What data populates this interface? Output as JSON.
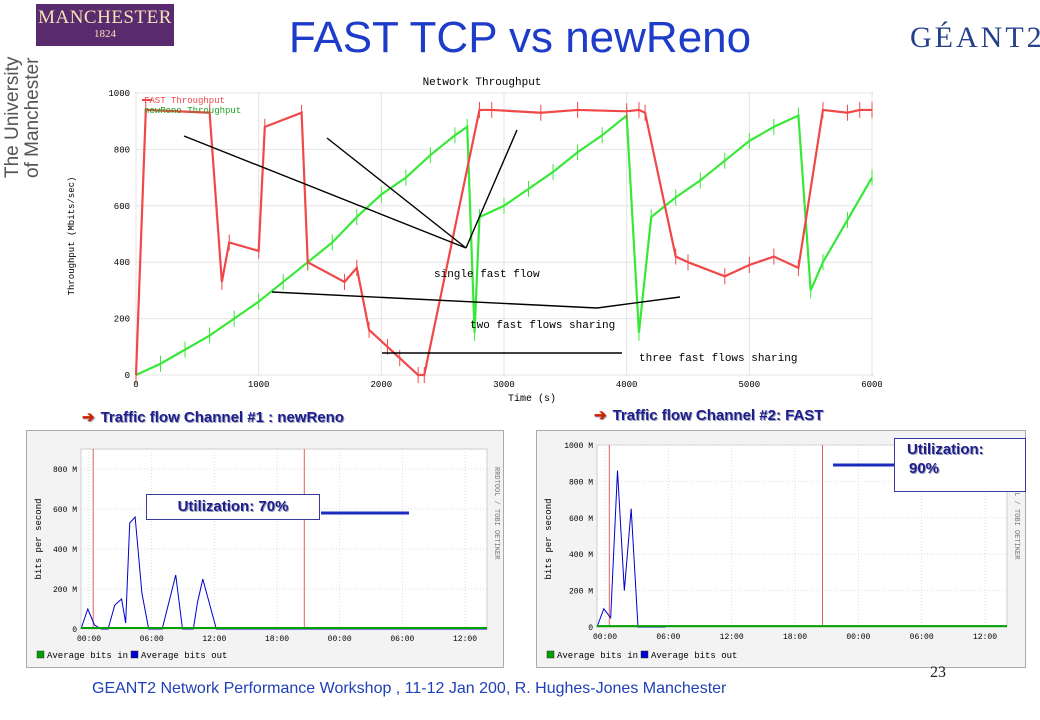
{
  "slide": {
    "title": "FAST TCP vs newReno",
    "footer": "GEANT2 Network Performance Workshop , 11-12 Jan 200,  R. Hughes-Jones  Manchester",
    "page_number": "23"
  },
  "logos": {
    "manchester_name": "MANCHESTER",
    "manchester_year": "1824",
    "university_line1": "The University",
    "university_line2": "of Manchester",
    "geant": "GÉANT2"
  },
  "channels": {
    "channel1_title": "Traffic flow Channel #1 : newReno",
    "channel2_title": "Traffic flow Channel #2: FAST",
    "channel1_util": "Utilization: 70%",
    "channel2_util_label": "Utilization:",
    "channel2_util_value": "90%"
  },
  "colors": {
    "fast": "#f04848",
    "newreno": "#38e838",
    "bits_in": "#00a000",
    "bits_out": "#0000d0",
    "title_blue": "#1c3cc9"
  },
  "chart_data": [
    {
      "type": "line",
      "title": "Network Throughput",
      "xlabel": "Time (s)",
      "ylabel": "Throughput (Mbits/sec)",
      "xlim": [
        0,
        6000
      ],
      "ylim": [
        0,
        1000
      ],
      "xticks": [
        0,
        1000,
        2000,
        3000,
        4000,
        5000,
        6000
      ],
      "yticks": [
        0,
        200,
        400,
        600,
        800,
        1000
      ],
      "legend": [
        "FAST Throughput",
        "newReno Throughput"
      ],
      "series": [
        {
          "name": "FAST Throughput",
          "x": [
            0,
            80,
            600,
            700,
            760,
            1000,
            1050,
            1350,
            1400,
            1700,
            1800,
            1900,
            2050,
            2150,
            2300,
            2350,
            2800,
            2900,
            3300,
            3600,
            4000,
            4100,
            4150,
            4400,
            4500,
            4800,
            5000,
            5200,
            5400,
            5600,
            5800,
            5900,
            6000
          ],
          "y": [
            0,
            940,
            930,
            330,
            470,
            440,
            880,
            930,
            400,
            330,
            380,
            160,
            100,
            60,
            0,
            0,
            940,
            940,
            930,
            940,
            935,
            940,
            930,
            420,
            400,
            350,
            390,
            420,
            380,
            940,
            930,
            940,
            940
          ]
        },
        {
          "name": "newReno Throughput",
          "x": [
            0,
            200,
            400,
            600,
            800,
            1000,
            1200,
            1400,
            1600,
            1800,
            2000,
            2200,
            2400,
            2600,
            2700,
            2760,
            2800,
            3000,
            3200,
            3400,
            3600,
            3800,
            4000,
            4100,
            4200,
            4400,
            4600,
            4800,
            5000,
            5200,
            5400,
            5500,
            5600,
            5800,
            6000
          ],
          "y": [
            0,
            40,
            90,
            140,
            200,
            260,
            330,
            400,
            470,
            560,
            640,
            700,
            780,
            850,
            880,
            150,
            560,
            600,
            660,
            720,
            790,
            850,
            920,
            150,
            560,
            630,
            690,
            760,
            830,
            880,
            920,
            300,
            400,
            550,
            700
          ]
        }
      ],
      "annotations": [
        "single fast flow",
        "two fast flows sharing",
        "three fast flows sharing"
      ]
    },
    {
      "type": "line",
      "title": "Traffic flow Channel #1 : newReno",
      "ylabel": "bits per second",
      "xlim": [
        0,
        30
      ],
      "ylim": [
        0,
        900
      ],
      "xticks": [
        "00:00",
        "06:00",
        "12:00",
        "18:00",
        "00:00",
        "06:00",
        "12:00"
      ],
      "yticks": [
        "0",
        "200 M",
        "400 M",
        "600 M",
        "800 M"
      ],
      "side_text": "RRDTOOL / TOBI OETIKER",
      "legend": [
        "Average bits in",
        "Average bits out"
      ],
      "series": [
        {
          "name": "Average bits out",
          "x": [
            0,
            0.5,
            1,
            1.5,
            2,
            2.5,
            3,
            3.3,
            3.6,
            4,
            4.5,
            5,
            6,
            7,
            7.5,
            8,
            8.3,
            8.6,
            9,
            10,
            12,
            14,
            15,
            15.5,
            16,
            16.5,
            17,
            17.5,
            18,
            18.5,
            19,
            20,
            24,
            24.5,
            25,
            25.5,
            26,
            26.3,
            26.6,
            27,
            27.5,
            28,
            28.3,
            28.6,
            29,
            30
          ],
          "y": [
            0,
            100,
            20,
            0,
            0,
            120,
            150,
            30,
            530,
            560,
            180,
            0,
            0,
            270,
            0,
            0,
            0,
            130,
            250,
            0,
            0,
            0,
            0,
            0,
            0,
            0,
            0,
            0,
            0,
            0,
            0,
            0,
            0,
            0,
            0,
            0,
            0,
            0,
            0,
            0,
            0,
            0,
            0,
            0,
            0,
            0
          ]
        },
        {
          "name": "Average bits in",
          "x": [
            0,
            30
          ],
          "y": [
            5,
            5
          ]
        }
      ]
    },
    {
      "type": "line",
      "title": "Traffic flow Channel #2: FAST",
      "ylabel": "bits per second",
      "xlim": [
        0,
        30
      ],
      "ylim": [
        0,
        1000
      ],
      "xticks": [
        "00:00",
        "06:00",
        "12:00",
        "18:00",
        "00:00",
        "06:00",
        "12:00"
      ],
      "yticks": [
        "0",
        "200 M",
        "400 M",
        "600 M",
        "800 M",
        "1000 M"
      ],
      "side_text": "RRDTOOL / TOBI OETIKER",
      "legend": [
        "Average bits in",
        "Average bits out"
      ],
      "series": [
        {
          "name": "Average bits out",
          "x": [
            0,
            0.5,
            1,
            1.5,
            2,
            2.5,
            3,
            3.5,
            4,
            4.5,
            5
          ],
          "y": [
            0,
            100,
            50,
            860,
            200,
            650,
            0,
            0,
            0,
            0,
            0
          ]
        },
        {
          "name": "Average bits in",
          "x": [
            0,
            30
          ],
          "y": [
            5,
            5
          ]
        }
      ]
    }
  ]
}
